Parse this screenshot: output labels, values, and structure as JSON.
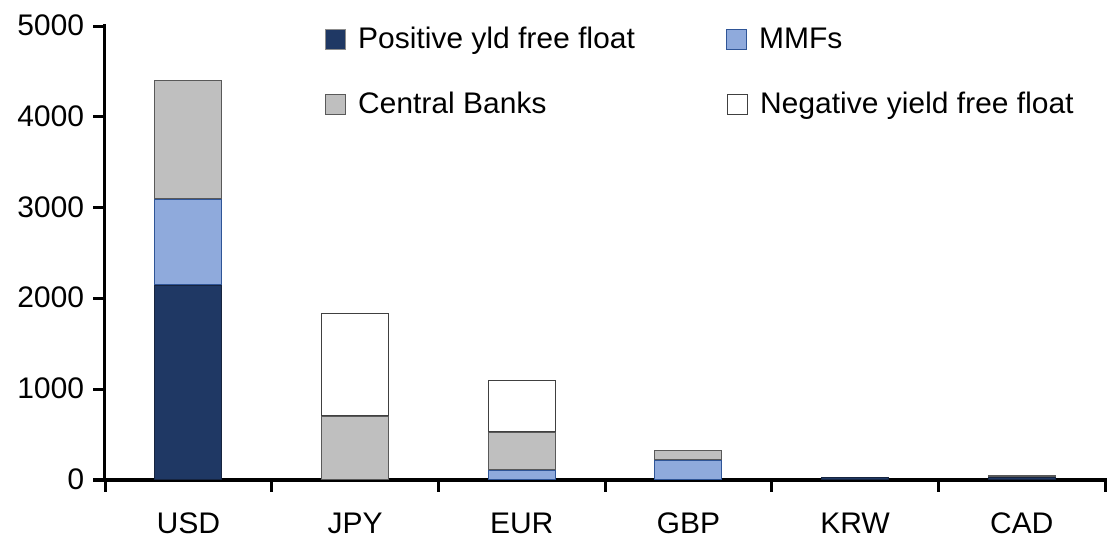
{
  "chart_data": {
    "type": "bar",
    "stacked": true,
    "title": "",
    "categories": [
      "USD",
      "JPY",
      "EUR",
      "GBP",
      "KRW",
      "CAD"
    ],
    "series": [
      {
        "name": "Positive yld free float",
        "color": "#1F3864",
        "border_color": "#16243F",
        "legend_border": "#8C8C8C",
        "values": [
          2150,
          0,
          0,
          0,
          35,
          30
        ]
      },
      {
        "name": "MMFs",
        "color": "#8FAADC",
        "border_color": "#2F5597",
        "values": [
          950,
          0,
          110,
          220,
          0,
          0
        ]
      },
      {
        "name": "Central Banks",
        "color": "#BFBFBF",
        "border_color": "#595959",
        "values": [
          1300,
          700,
          420,
          110,
          0,
          30
        ]
      },
      {
        "name": "Negative yield free float",
        "color": "#FFFFFF",
        "border_color": "#404040",
        "values": [
          0,
          1140,
          570,
          0,
          0,
          0
        ]
      }
    ],
    "ylim": [
      0,
      5000
    ],
    "yticks": [
      0,
      1000,
      2000,
      3000,
      4000,
      5000
    ],
    "legend_position": "top",
    "grid": false,
    "axis_color": "#000000",
    "background": "#FFFFFF"
  }
}
